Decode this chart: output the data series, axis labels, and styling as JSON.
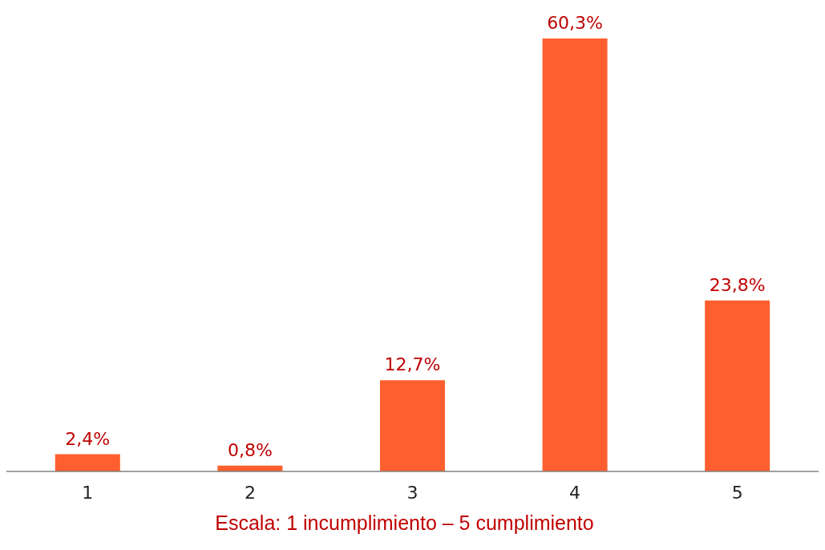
{
  "chart_data": {
    "type": "bar",
    "categories": [
      "1",
      "2",
      "3",
      "4",
      "5"
    ],
    "values": [
      2.4,
      0.8,
      12.7,
      60.3,
      23.8
    ],
    "value_labels": [
      "2,4%",
      "0,8%",
      "12,7%",
      "60,3%",
      "23,8%"
    ],
    "color": "#ff5f2e",
    "xlabel": "Escala: 1 incumplimiento – 5 cumplimiento",
    "grid": false,
    "legend": false
  }
}
